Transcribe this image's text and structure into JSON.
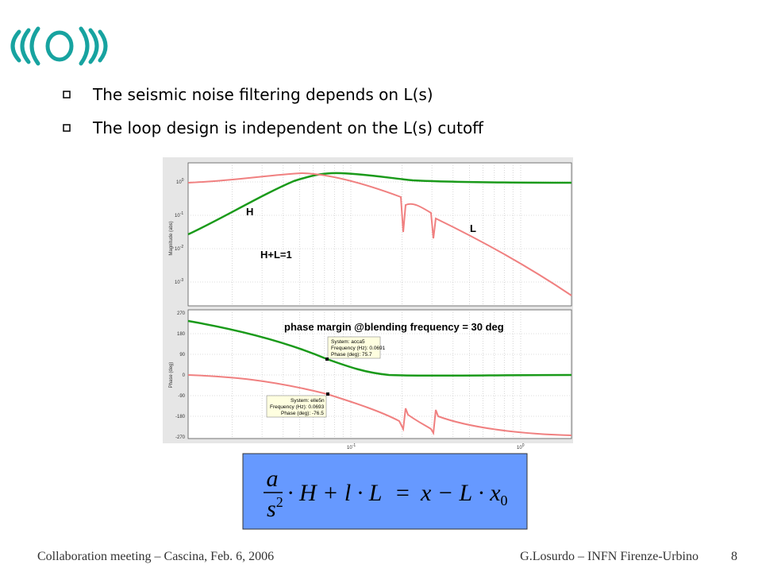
{
  "bullets": [
    "The seismic noise filtering depends on L(s)",
    "The loop design is independent on the L(s) cutoff"
  ],
  "plot": {
    "magnitude_label": "Magnitude (abs)",
    "phase_label": "Phase (deg)",
    "magnitude_ticks": [
      {
        "base": "10",
        "exp": "0"
      },
      {
        "base": "10",
        "exp": "-1"
      },
      {
        "base": "10",
        "exp": "-2"
      },
      {
        "base": "10",
        "exp": "-3"
      }
    ],
    "phase_ticks": [
      "270",
      "180",
      "90",
      "0",
      "-90",
      "-180",
      "-270"
    ],
    "x_ticks": [
      {
        "base": "10",
        "exp": "-1"
      },
      {
        "base": "10",
        "exp": "0"
      }
    ],
    "annotations": {
      "h": "H",
      "l": "L",
      "sum": "H+L=1",
      "phase_margin": "phase margin @blending frequency = 30 deg"
    },
    "datatips": [
      [
        "System: acca5",
        "Frequency (Hz): 0.0691",
        "Phase (deg): 75.7"
      ],
      [
        "System: elle5n",
        "Frequency (Hz): 0.0693",
        "Phase (deg): -76.5"
      ]
    ]
  },
  "equation": {
    "numerator": "a",
    "denominator": "s",
    "denominator_exp": "2",
    "lhs": "· H + l · L",
    "equals": "=",
    "rhs": "x − L · x",
    "rhs_sub": "0"
  },
  "footer": {
    "left": "Collaboration meeting – Cascina, Feb. 6, 2006",
    "right": "G.Losurdo – INFN Firenze-Urbino",
    "page": "8"
  }
}
